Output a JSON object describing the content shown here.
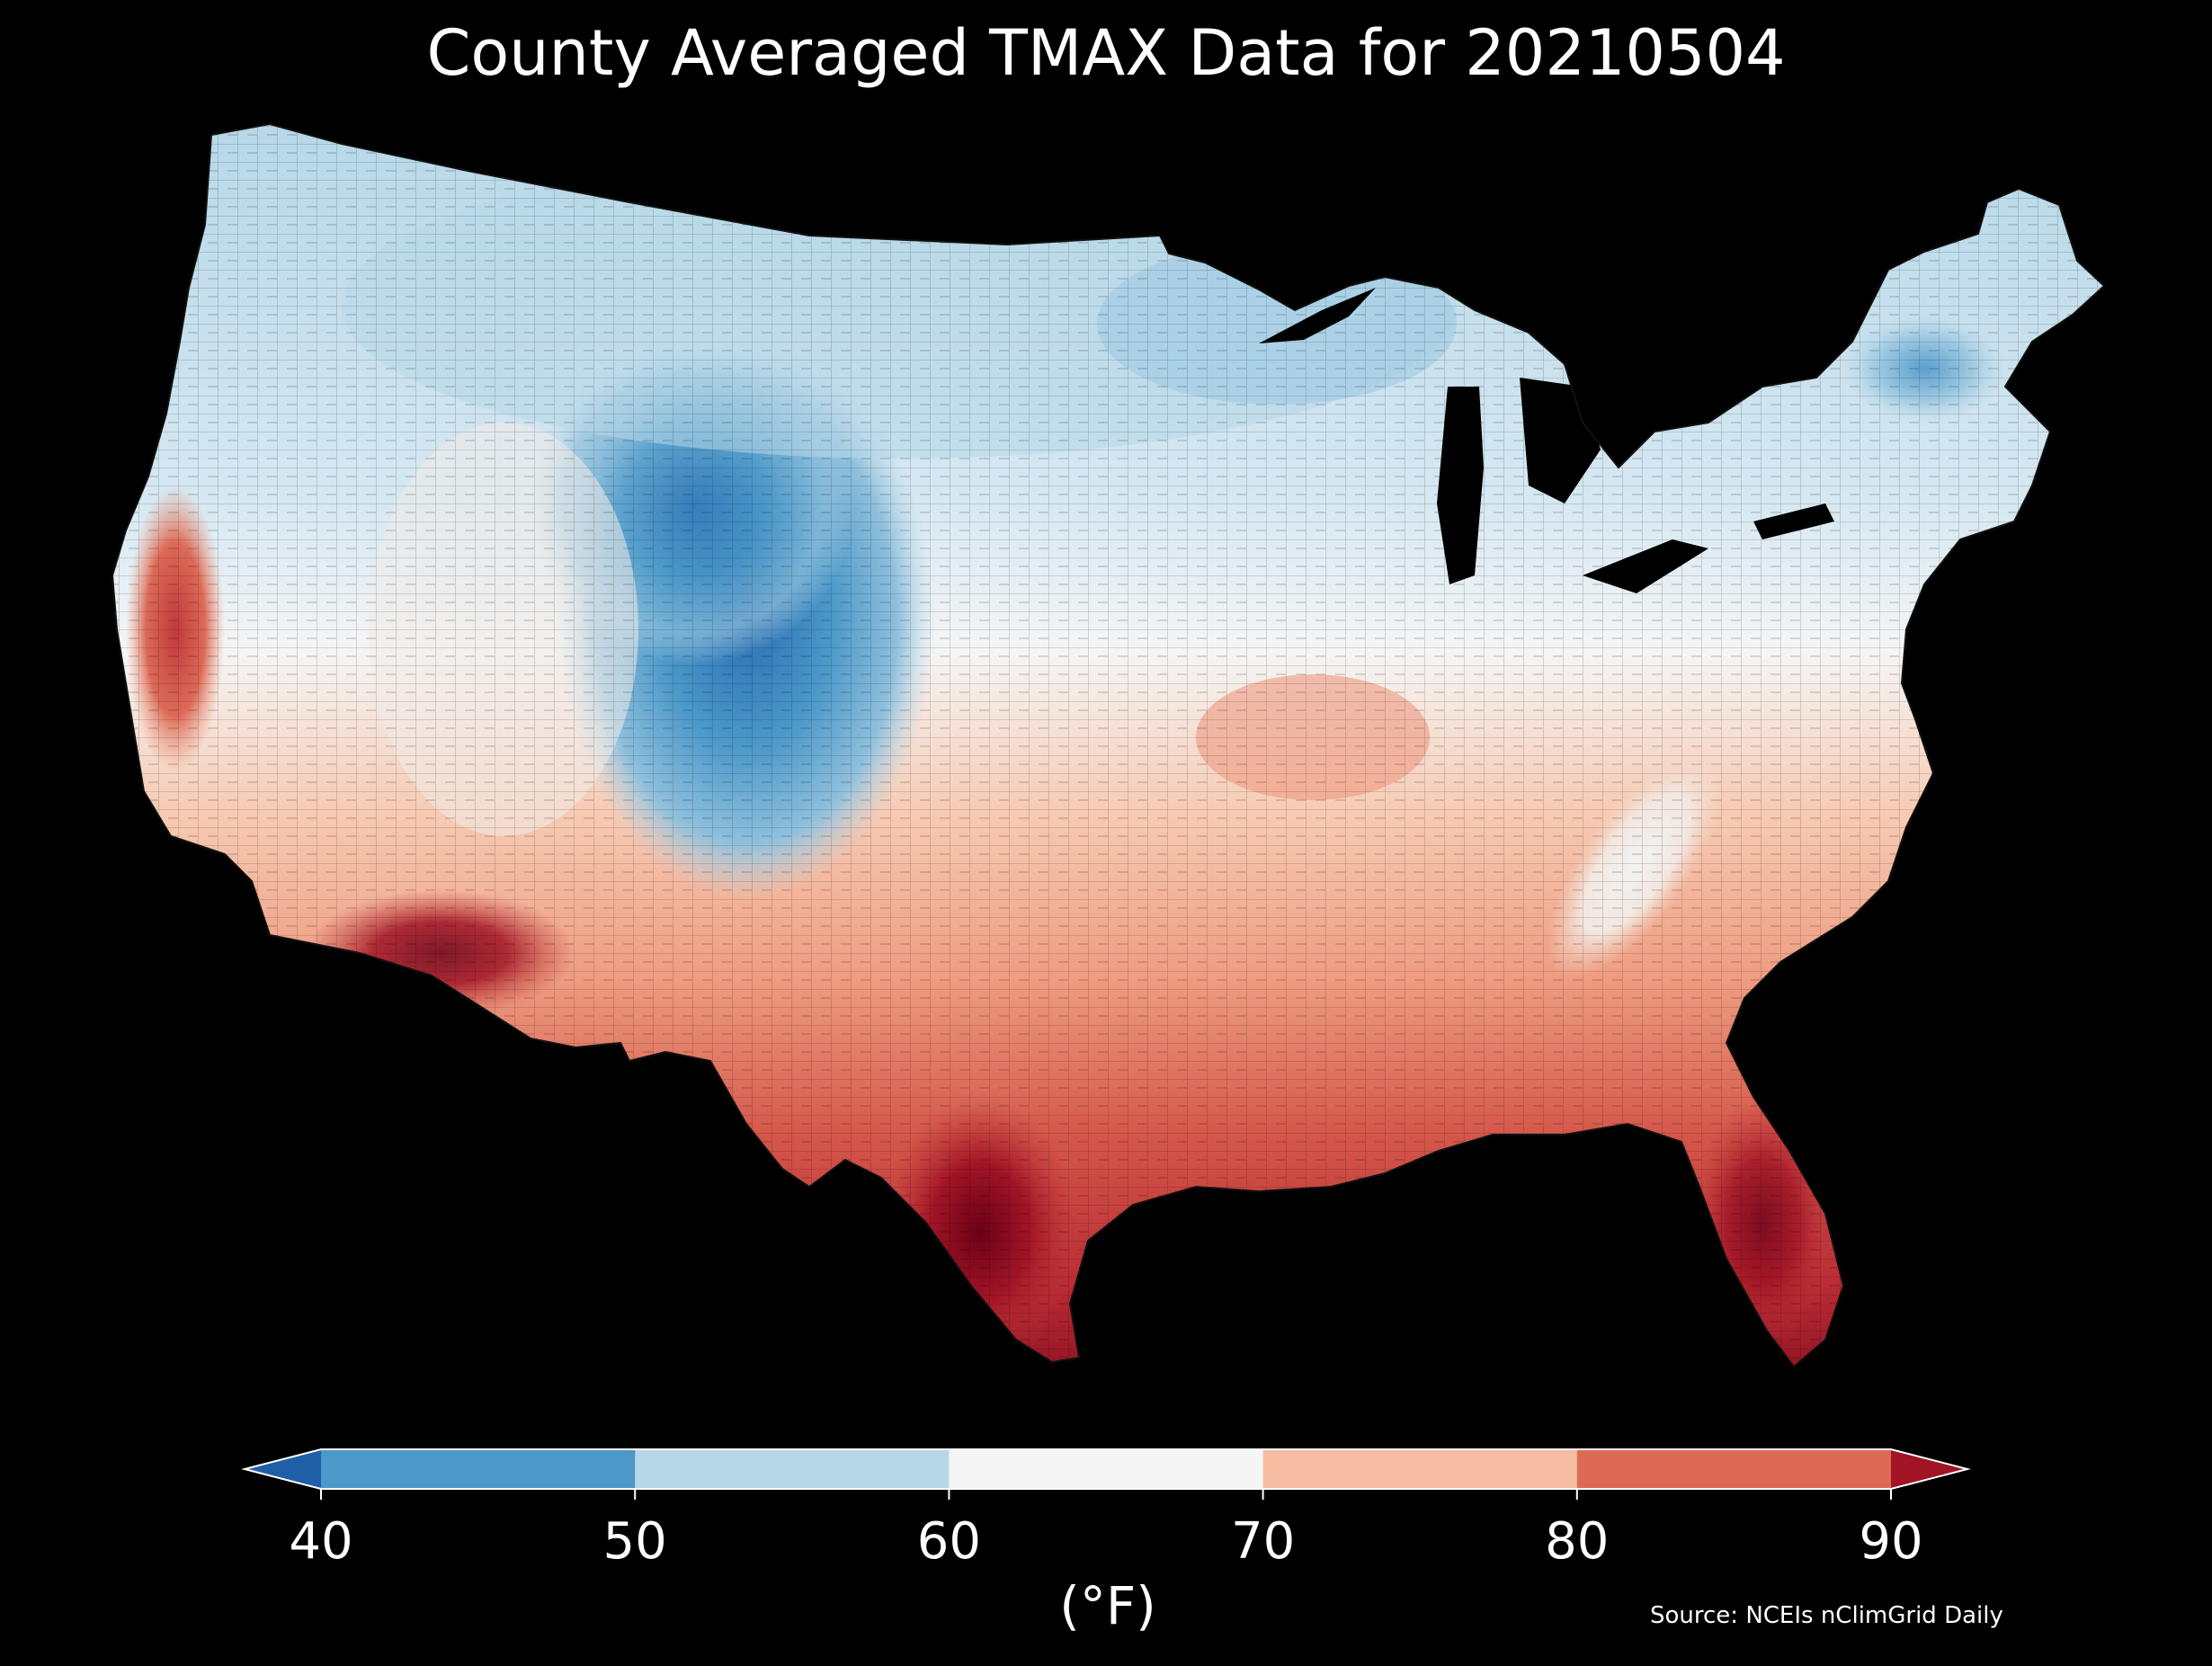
{
  "title": "County Averaged TMAX Data for 20210504",
  "legend": {
    "ticks": [
      "40",
      "50",
      "60",
      "70",
      "80",
      "90"
    ],
    "units": "(°F)",
    "bins": [
      {
        "range": "<40",
        "color": "#1f5fa6"
      },
      {
        "range": "40-50",
        "color": "#4b98c9"
      },
      {
        "range": "50-60",
        "color": "#b6d7e8"
      },
      {
        "range": "60-70",
        "color": "#f5f5f5"
      },
      {
        "range": "70-80",
        "color": "#f7bda2"
      },
      {
        "range": "80-90",
        "color": "#dc6a57"
      },
      {
        "range": ">90",
        "color": "#a11425"
      }
    ]
  },
  "source": "Source: NCEIs nClimGrid Daily",
  "map": {
    "region": "Contiguous United States",
    "variable": "TMAX",
    "level": "county",
    "regional_pattern": [
      {
        "area": "Colorado and Wyoming Rockies",
        "bin": "40-50"
      },
      {
        "area": "Northern Rockies and Northern Plains",
        "bin": "50-60"
      },
      {
        "area": "Great Lakes and Northern New England",
        "bin": "50-60"
      },
      {
        "area": "Central Plains, Midwest, Great Basin",
        "bin": "60-70"
      },
      {
        "area": "Appalachians",
        "bin": "60-70"
      },
      {
        "area": "Central California valley",
        "bin": "80-90"
      },
      {
        "area": "Southeast and Gulf Coast",
        "bin": "80-90"
      },
      {
        "area": "South Texas and Lower Rio Grande",
        "bin": ">90"
      },
      {
        "area": "Southern Arizona",
        "bin": ">90"
      },
      {
        "area": "Florida Peninsula",
        "bin": ">90"
      }
    ]
  }
}
